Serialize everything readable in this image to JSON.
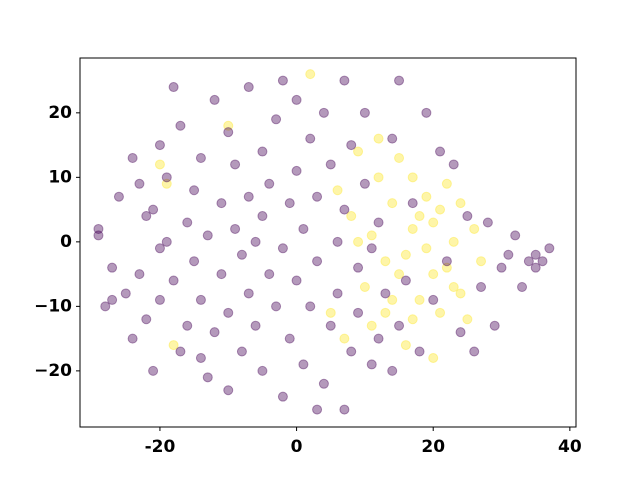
{
  "chart_data": {
    "type": "scatter",
    "xlim": [
      -31.7,
      40.9
    ],
    "ylim": [
      -28.7,
      28.5
    ],
    "xticks": [
      -20,
      0,
      20,
      40
    ],
    "yticks": [
      {
        "value": -20,
        "label": "−20"
      },
      {
        "value": -10,
        "label": "−10"
      },
      0,
      10,
      20
    ],
    "series": [
      {
        "color": "#fde725",
        "x": [
          -20,
          -19,
          -18,
          -10,
          2,
          5,
          6,
          7,
          8,
          9,
          10,
          11,
          12,
          13,
          13,
          14,
          15,
          15,
          16,
          17,
          17,
          18,
          19,
          19,
          20,
          20,
          21,
          22,
          22,
          23,
          24,
          24,
          25,
          26,
          27,
          16,
          18,
          11,
          14,
          20,
          9,
          12,
          21,
          23,
          17
        ],
        "values": [
          12,
          9,
          -16,
          18,
          26,
          -11,
          8,
          -15,
          4,
          14,
          -7,
          1,
          10,
          -3,
          -11,
          6,
          13,
          -5,
          -16,
          2,
          10,
          -9,
          -1,
          7,
          -18,
          3,
          -11,
          9,
          -4,
          0,
          6,
          -8,
          -12,
          2,
          -3,
          -2,
          4,
          -13,
          -9,
          -5,
          0,
          16,
          5,
          -7,
          -12
        ]
      },
      {
        "color": "#440154",
        "x": [
          -29,
          -29,
          -27,
          -28,
          -26,
          -25,
          -24,
          -24,
          -23,
          -23,
          -22,
          -22,
          -21,
          -21,
          -20,
          -20,
          -20,
          -19,
          -19,
          -18,
          -18,
          -17,
          -17,
          -16,
          -16,
          -15,
          -15,
          -14,
          -14,
          -13,
          -13,
          -12,
          -12,
          -11,
          -11,
          -10,
          -10,
          -10,
          -9,
          -9,
          -8,
          -8,
          -7,
          -7,
          -7,
          -6,
          -6,
          -5,
          -5,
          -5,
          -4,
          -4,
          -3,
          -3,
          -2,
          -2,
          -1,
          -1,
          0,
          0,
          0,
          1,
          1,
          2,
          2,
          3,
          3,
          4,
          4,
          5,
          5,
          6,
          6,
          7,
          7,
          7,
          8,
          8,
          9,
          9,
          10,
          10,
          11,
          11,
          12,
          12,
          13,
          14,
          14,
          15,
          15,
          16,
          17,
          18,
          19,
          20,
          21,
          22,
          23,
          24,
          25,
          26,
          27,
          28,
          29,
          30,
          31,
          32,
          33,
          34,
          35,
          36,
          37,
          35,
          -27,
          -14,
          -2,
          3
        ],
        "values": [
          2,
          1,
          -4,
          -10,
          7,
          -8,
          13,
          -15,
          9,
          -5,
          4,
          -12,
          -20,
          5,
          15,
          -1,
          -9,
          0,
          10,
          -6,
          24,
          18,
          -17,
          3,
          -13,
          8,
          -3,
          13,
          -9,
          -21,
          1,
          22,
          -14,
          6,
          -5,
          17,
          -11,
          -23,
          2,
          12,
          -2,
          -17,
          24,
          7,
          -8,
          -13,
          0,
          14,
          -20,
          4,
          -5,
          9,
          19,
          -10,
          -1,
          -24,
          6,
          -15,
          22,
          11,
          -6,
          2,
          -19,
          16,
          -10,
          7,
          -3,
          -22,
          20,
          -13,
          12,
          0,
          -8,
          25,
          -26,
          5,
          -17,
          15,
          -4,
          -11,
          20,
          9,
          -19,
          -1,
          3,
          -15,
          -8,
          16,
          -20,
          25,
          -13,
          -6,
          6,
          -17,
          20,
          -9,
          14,
          -3,
          12,
          -14,
          4,
          -17,
          -7,
          3,
          -13,
          -4,
          -2,
          1,
          -7,
          -3,
          -2,
          -3,
          -1,
          -4,
          -9,
          -18,
          25,
          -26
        ]
      }
    ]
  }
}
